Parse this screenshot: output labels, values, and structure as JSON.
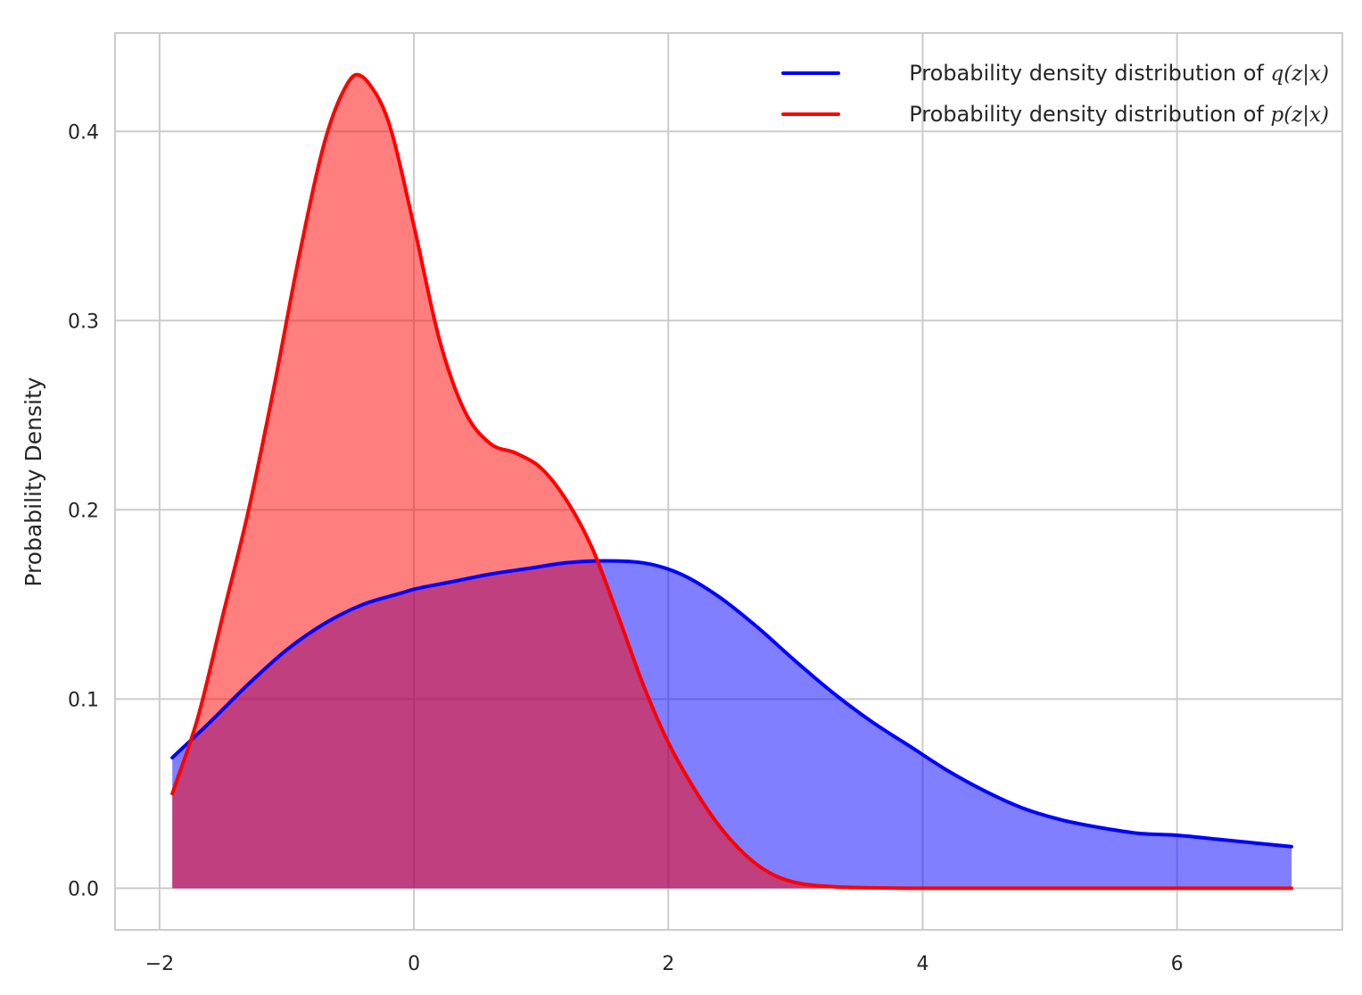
{
  "chart_data": {
    "type": "area",
    "title": "",
    "xlabel": "",
    "ylabel": "Probability Density",
    "xlim": [
      -2.35,
      7.3
    ],
    "ylim": [
      -0.022,
      0.452
    ],
    "xticks": [
      -2,
      0,
      2,
      4,
      6
    ],
    "xtick_labels": [
      "−2",
      "0",
      "2",
      "4",
      "6"
    ],
    "yticks": [
      0.0,
      0.1,
      0.2,
      0.3,
      0.4
    ],
    "ytick_labels": [
      "0.0",
      "0.1",
      "0.2",
      "0.3",
      "0.4"
    ],
    "grid": true,
    "legend_position": "top-right",
    "series": [
      {
        "name": "Probability density distribution of q(z|x)",
        "legend_prefix": "Probability density distribution of ",
        "legend_math": "q(z|x)",
        "color": "#0000ff",
        "fill_color": "#0000ff",
        "fill_opacity": 0.5,
        "x": [
          -1.9,
          -1.6,
          -1.3,
          -1.0,
          -0.7,
          -0.4,
          -0.1,
          0.0,
          0.3,
          0.6,
          0.9,
          1.2,
          1.5,
          1.8,
          2.1,
          2.4,
          2.7,
          3.0,
          3.3,
          3.6,
          3.9,
          4.2,
          4.5,
          4.8,
          5.1,
          5.4,
          5.7,
          6.0,
          6.3,
          6.6,
          6.9
        ],
        "y": [
          0.069,
          0.088,
          0.108,
          0.126,
          0.14,
          0.15,
          0.156,
          0.158,
          0.162,
          0.166,
          0.169,
          0.172,
          0.173,
          0.172,
          0.166,
          0.154,
          0.138,
          0.12,
          0.103,
          0.088,
          0.075,
          0.062,
          0.051,
          0.042,
          0.036,
          0.032,
          0.029,
          0.028,
          0.026,
          0.024,
          0.022
        ]
      },
      {
        "name": "Probability density distribution of p(z|x)",
        "legend_prefix": "Probability density distribution of ",
        "legend_math": "p(z|x)",
        "color": "#ff0000",
        "fill_color": "#ff0000",
        "fill_opacity": 0.5,
        "x": [
          -1.9,
          -1.7,
          -1.5,
          -1.3,
          -1.1,
          -0.9,
          -0.7,
          -0.55,
          -0.45,
          -0.35,
          -0.2,
          0.0,
          0.2,
          0.4,
          0.6,
          0.8,
          1.0,
          1.2,
          1.4,
          1.6,
          1.8,
          2.0,
          2.2,
          2.4,
          2.6,
          2.8,
          3.0,
          3.3,
          3.6,
          4.0,
          5.0,
          6.0,
          6.9
        ],
        "y": [
          0.05,
          0.09,
          0.145,
          0.2,
          0.265,
          0.335,
          0.395,
          0.422,
          0.43,
          0.425,
          0.405,
          0.35,
          0.29,
          0.252,
          0.235,
          0.23,
          0.222,
          0.205,
          0.18,
          0.145,
          0.108,
          0.077,
          0.053,
          0.033,
          0.018,
          0.008,
          0.003,
          0.0008,
          0.0002,
          0.0,
          0.0,
          0.0,
          0.0
        ]
      }
    ]
  }
}
